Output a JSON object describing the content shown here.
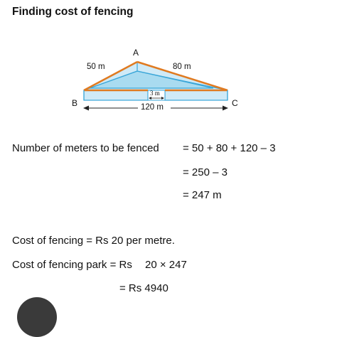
{
  "title": "Finding cost of fencing",
  "diagram": {
    "vertex_a": "A",
    "vertex_b": "B",
    "vertex_c": "C",
    "side_ab": "50 m",
    "side_ac": "80 m",
    "base": "120 m",
    "gate": "3 m",
    "colors": {
      "fence": "#e07a20",
      "outline": "#3aa6d8",
      "fill": "#a9dbf0",
      "fill_light": "#cfeaf7"
    }
  },
  "fenced": {
    "label": "Number of meters to be fenced",
    "step1": "= 50 + 80 + 120 – 3",
    "step2": "= 250 – 3",
    "step3": "= 247 m"
  },
  "cost": {
    "rate": "Cost of fencing = Rs 20 per metre.",
    "park_label": "Cost of fencing park = Rs",
    "park_expr": "20 × 247",
    "result": "= Rs 4940"
  }
}
